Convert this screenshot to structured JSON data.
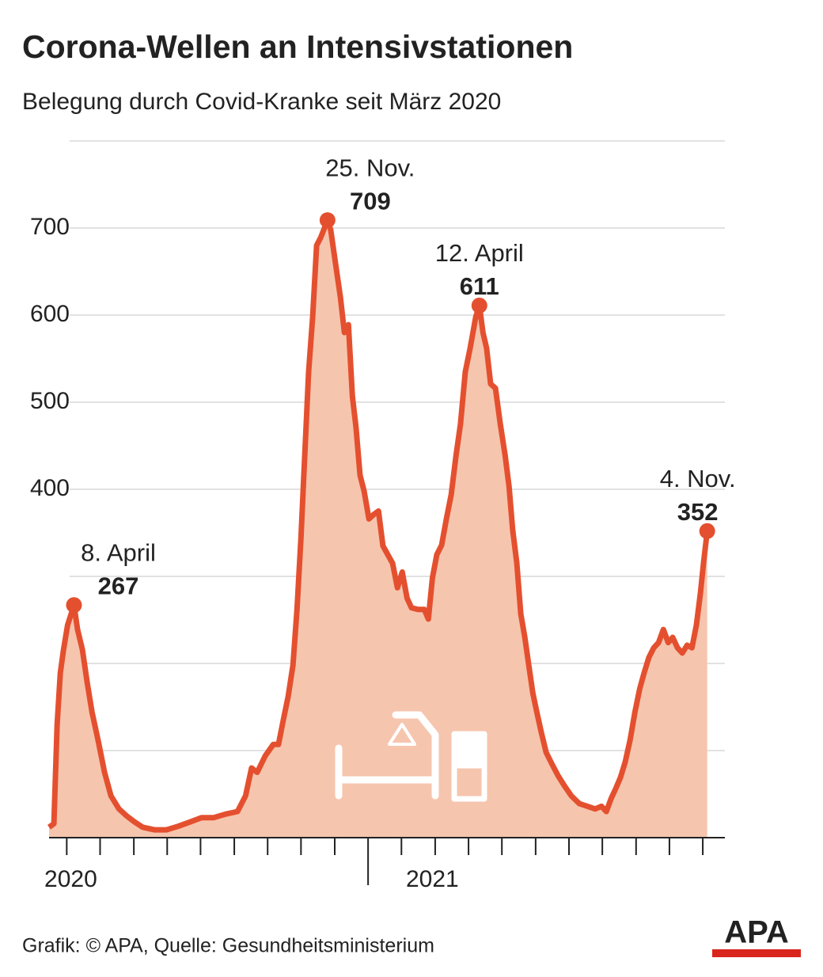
{
  "chart_data": {
    "type": "area",
    "title": "Corona-Wellen an Intensivstationen",
    "subtitle": "Belegung durch Covid-Kranke seit März 2020",
    "source": "Grafik: © APA, Quelle: Gesundheitsministerium",
    "logo": "APA",
    "line_color": "#e4502f",
    "fill_color": "#f6c5ae",
    "ylim": [
      0,
      800
    ],
    "yticks": [
      400,
      500,
      600,
      700
    ],
    "grid_lines": [
      100,
      200,
      300,
      400,
      500,
      600,
      700,
      800
    ],
    "xlim": [
      2020.206,
      2021.888
    ],
    "xticks": [
      {
        "value": 2020.26,
        "label": "2020"
      },
      {
        "value": 2021.16,
        "label": "2021"
      }
    ],
    "month_ticks": [
      2020.25,
      2020.333,
      2020.417,
      2020.5,
      2020.583,
      2020.667,
      2020.75,
      2020.833,
      2020.917,
      2021.083,
      2021.167,
      2021.25,
      2021.333,
      2021.417,
      2021.5,
      2021.583,
      2021.667,
      2021.75,
      2021.833
    ],
    "year_divider": 2021,
    "x": [
      2020.206,
      2020.218,
      2020.226,
      2020.234,
      2020.242,
      2020.252,
      2020.268,
      2020.277,
      2020.289,
      2020.301,
      2020.313,
      2020.328,
      2020.344,
      2020.36,
      2020.38,
      2020.399,
      2020.419,
      2020.439,
      2020.468,
      2020.498,
      2020.527,
      2020.557,
      2020.586,
      2020.616,
      2020.645,
      2020.675,
      2020.695,
      2020.71,
      2020.724,
      2020.744,
      2020.764,
      2020.777,
      2020.789,
      2020.801,
      2020.813,
      2020.823,
      2020.833,
      2020.842,
      2020.852,
      2020.862,
      2020.872,
      2020.882,
      2020.899,
      2020.907,
      2020.921,
      2020.931,
      2020.941,
      2020.951,
      2020.961,
      2020.97,
      2020.98,
      2020.99,
      2021.002,
      2021.014,
      2021.026,
      2021.037,
      2021.049,
      2021.061,
      2021.073,
      2021.085,
      2021.097,
      2021.108,
      2021.124,
      2021.14,
      2021.15,
      2021.16,
      2021.171,
      2021.183,
      2021.195,
      2021.207,
      2021.219,
      2021.23,
      2021.242,
      2021.254,
      2021.268,
      2021.277,
      2021.286,
      2021.295,
      2021.305,
      2021.317,
      2021.329,
      2021.341,
      2021.351,
      2021.36,
      2021.37,
      2021.38,
      2021.39,
      2021.4,
      2021.41,
      2021.42,
      2021.431,
      2021.443,
      2021.457,
      2021.473,
      2021.488,
      2021.506,
      2021.526,
      2021.546,
      2021.565,
      2021.581,
      2021.593,
      2021.605,
      2021.617,
      2021.628,
      2021.64,
      2021.652,
      2021.664,
      2021.676,
      2021.687,
      2021.699,
      2021.711,
      2021.723,
      2021.735,
      2021.747,
      2021.758,
      2021.77,
      2021.782,
      2021.794,
      2021.806,
      2021.817,
      2021.827,
      2021.835,
      2021.844
    ],
    "values": [
      12,
      16,
      130,
      189,
      216,
      244,
      267,
      239,
      216,
      178,
      144,
      112,
      75,
      48,
      33,
      25,
      18,
      12,
      9,
      9,
      13,
      18,
      23,
      23,
      27,
      30,
      48,
      80,
      75,
      94,
      107,
      107,
      135,
      162,
      198,
      262,
      344,
      435,
      535,
      598,
      680,
      689,
      709,
      698,
      653,
      621,
      580,
      589,
      507,
      471,
      416,
      398,
      366,
      371,
      375,
      335,
      325,
      315,
      287,
      305,
      275,
      264,
      262,
      262,
      251,
      298,
      325,
      336,
      366,
      394,
      439,
      475,
      535,
      562,
      598,
      611,
      580,
      562,
      521,
      516,
      475,
      439,
      403,
      353,
      316,
      257,
      230,
      198,
      166,
      144,
      121,
      98,
      85,
      71,
      60,
      48,
      39,
      36,
      33,
      36,
      30,
      45,
      57,
      69,
      87,
      112,
      144,
      171,
      189,
      207,
      218,
      224,
      239,
      224,
      230,
      218,
      212,
      221,
      218,
      244,
      280,
      316,
      352
    ],
    "annotations": [
      {
        "date": "8. April",
        "value": 267,
        "x": 2020.268
      },
      {
        "date": "25. Nov.",
        "value": 709,
        "x": 2020.899
      },
      {
        "date": "12. April",
        "value": 611,
        "x": 2021.277
      },
      {
        "date": "4. Nov.",
        "value": 352,
        "x": 2021.844
      }
    ]
  }
}
